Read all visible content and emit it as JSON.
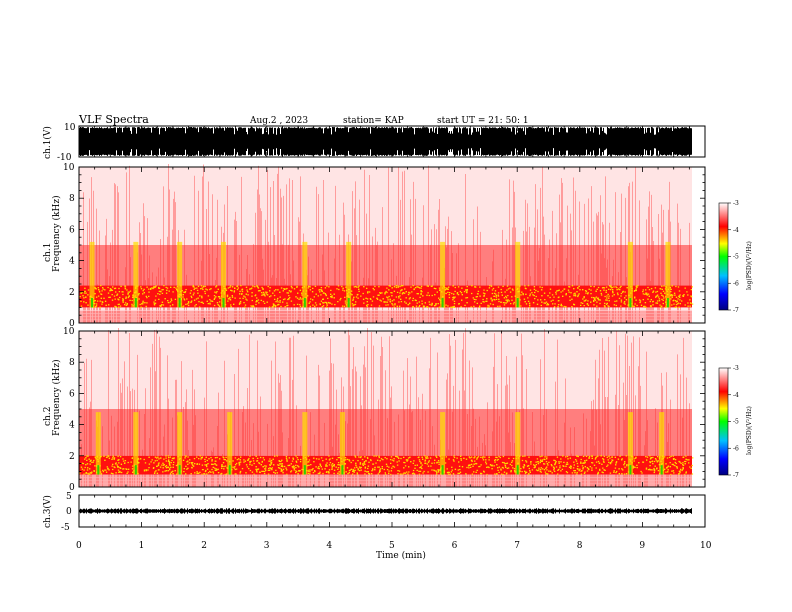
{
  "header": {
    "title": "VLF Spectra",
    "date": "Aug.2 , 2023",
    "station": "station= KAP",
    "start": "start  UT  =   21: 50: 1"
  },
  "chart_data": [
    {
      "type": "line",
      "name": "ch1-waveform",
      "ylabel": "ch.1(V)",
      "ylim": [
        -10,
        10
      ],
      "y_ticks": [
        "10",
        "-10"
      ],
      "xlim": [
        0,
        10
      ]
    },
    {
      "type": "heatmap",
      "name": "ch1-spectrogram",
      "ylabel": "ch.1\nFrequency (kHz)",
      "ylabel_lines": [
        "ch.1",
        "Frequency  (kHz)"
      ],
      "ylim": [
        0,
        10
      ],
      "y_ticks": [
        "0",
        "2",
        "4",
        "6",
        "8",
        "10"
      ],
      "xlim": [
        0,
        10
      ],
      "colorbar": {
        "label": "log(PSD)(V²/Hz)",
        "range": [
          -7,
          -3
        ],
        "ticks": [
          "-3",
          "-4",
          "-5",
          "-6",
          "-7"
        ],
        "colors": [
          "#000080",
          "#0000ff",
          "#00c0ff",
          "#00ff00",
          "#ffff00",
          "#ff0000",
          "#ffffff"
        ]
      },
      "noise_band_khz": [
        1,
        2.4
      ],
      "bursts_min": [
        0.2,
        0.9,
        1.6,
        2.3,
        3.6,
        4.3,
        5.8,
        7.0,
        8.8,
        9.4
      ]
    },
    {
      "type": "heatmap",
      "name": "ch2-spectrogram",
      "ylabel_lines": [
        "ch.2",
        "Frequency  (kHz)"
      ],
      "ylim": [
        0,
        10
      ],
      "y_ticks": [
        "0",
        "2",
        "4",
        "6",
        "8",
        "10"
      ],
      "xlim": [
        0,
        10
      ],
      "colorbar": {
        "label": "log(PSD)(V²/Hz)",
        "range": [
          -7,
          -3
        ],
        "ticks": [
          "-3",
          "-4",
          "-5",
          "-6",
          "-7"
        ]
      },
      "noise_band_khz": [
        0.8,
        2.0
      ],
      "bursts_min": [
        0.3,
        0.9,
        1.6,
        2.4,
        3.6,
        4.2,
        5.8,
        7.0,
        8.8,
        9.3
      ]
    },
    {
      "type": "line",
      "name": "ch3-waveform",
      "ylabel": "ch.3(V)",
      "ylim": [
        -5,
        5
      ],
      "y_ticks": [
        "5",
        "0",
        "-5"
      ],
      "xlim": [
        0,
        10
      ],
      "level": [
        -0.6,
        0.6
      ]
    }
  ],
  "xaxis": {
    "label": "Time  (min)",
    "ticks": [
      "0",
      "1",
      "2",
      "3",
      "4",
      "5",
      "6",
      "7",
      "8",
      "9",
      "10"
    ],
    "range": [
      0,
      10
    ]
  }
}
